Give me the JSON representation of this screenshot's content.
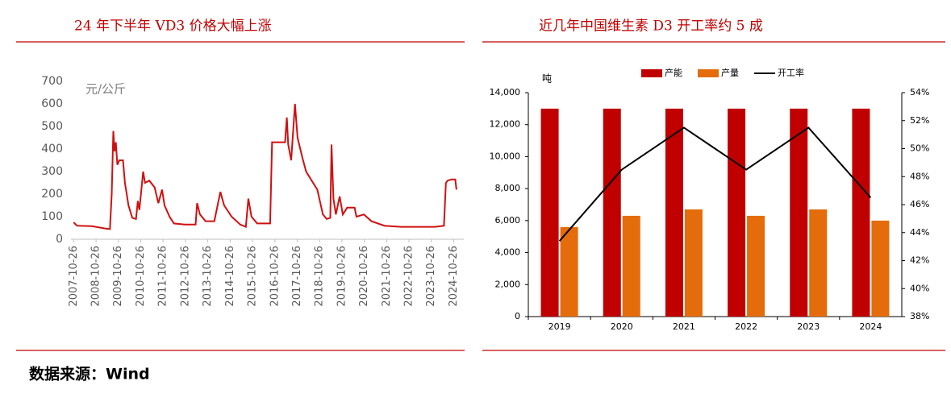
{
  "chart_data": [
    {
      "type": "line",
      "title": "24 年下半年 VD3 价格大幅上涨",
      "unit": "元/公斤",
      "color": "#d01010",
      "x": [
        "2007-10-26",
        "2007-12-20",
        "2008-08-20",
        "2009-03-20",
        "2009-06-10",
        "2009-07-10",
        "2009-08-05",
        "2009-08-25",
        "2009-09-15",
        "2009-10-10",
        "2009-11-10",
        "2010-01-10",
        "2010-02-10",
        "2010-04-10",
        "2010-06-10",
        "2010-08-10",
        "2010-09-10",
        "2010-10-05",
        "2010-12-05",
        "2011-01-05",
        "2011-03-15",
        "2011-06-10",
        "2011-08-10",
        "2011-10-10",
        "2011-11-20",
        "2012-02-10",
        "2012-04-20",
        "2012-10-20",
        "2013-04-10",
        "2013-05-05",
        "2013-06-20",
        "2013-09-20",
        "2014-02-10",
        "2014-04-20",
        "2014-05-20",
        "2014-07-20",
        "2014-11-20",
        "2015-04-10",
        "2015-07-10",
        "2015-08-20",
        "2015-10-10",
        "2016-01-10",
        "2016-08-10",
        "2016-09-10",
        "2017-04-10",
        "2017-05-10",
        "2017-06-01",
        "2017-07-20",
        "2017-09-20",
        "2017-11-01",
        "2018-01-20",
        "2018-03-20",
        "2018-06-20",
        "2018-09-20",
        "2018-12-20",
        "2019-02-20",
        "2019-04-20",
        "2019-05-10",
        "2019-06-10",
        "2019-07-20",
        "2019-09-20",
        "2019-11-10",
        "2020-01-20",
        "2020-05-20",
        "2020-06-20",
        "2020-10-20",
        "2021-02-20",
        "2021-09-20",
        "2022-06-20",
        "2023-04-20",
        "2023-12-20",
        "2024-05-20",
        "2024-06-20",
        "2024-07-20",
        "2024-09-20",
        "2024-11-20",
        "2024-12-10"
      ],
      "values": [
        75,
        60,
        58,
        48,
        45,
        200,
        480,
        390,
        430,
        330,
        350,
        350,
        250,
        150,
        95,
        90,
        170,
        130,
        300,
        250,
        260,
        230,
        160,
        220,
        150,
        100,
        70,
        65,
        65,
        160,
        110,
        80,
        80,
        170,
        210,
        150,
        100,
        65,
        55,
        180,
        100,
        70,
        70,
        430,
        430,
        540,
        420,
        350,
        600,
        450,
        360,
        300,
        260,
        220,
        110,
        90,
        95,
        420,
        180,
        110,
        190,
        110,
        140,
        140,
        100,
        110,
        80,
        60,
        55,
        55,
        55,
        60,
        250,
        260,
        265,
        265,
        220
      ],
      "xlim": [
        "2007-09-13",
        "2025-04-09"
      ],
      "xticks": [
        "2007-10-26",
        "2008-10-26",
        "2009-10-26",
        "2010-10-26",
        "2011-10-26",
        "2012-10-26",
        "2013-10-26",
        "2014-10-26",
        "2015-10-26",
        "2016-10-26",
        "2017-10-26",
        "2018-10-26",
        "2019-10-26",
        "2020-10-26",
        "2021-10-26",
        "2022-10-26",
        "2023-10-26",
        "2024-10-26"
      ],
      "ylim": [
        0,
        700
      ],
      "yticks": [
        0,
        100,
        200,
        300,
        400,
        500,
        600,
        700
      ]
    },
    {
      "type": "bar",
      "title": "近几年中国维生素 D3 开工率约 5 成",
      "unit": "吨",
      "categories": [
        "2019",
        "2020",
        "2021",
        "2022",
        "2023",
        "2024"
      ],
      "series": [
        {
          "name": "产能",
          "color": "#c00000",
          "values": [
            13000,
            13000,
            13000,
            13000,
            13000,
            13000
          ]
        },
        {
          "name": "产量",
          "color": "#e46c0a",
          "values": [
            5600,
            6300,
            6700,
            6300,
            6700,
            6000
          ]
        },
        {
          "name": "开工率",
          "color": "#000000",
          "type": "line",
          "axis": "y2",
          "values": [
            43.4,
            48.5,
            51.5,
            48.5,
            51.5,
            46.5
          ]
        }
      ],
      "ylim": [
        0,
        14000
      ],
      "yticks": [
        0,
        {
          "value": 2000,
          "label": "2,000"
        },
        {
          "value": 4000,
          "label": "4,000"
        },
        {
          "value": 6000,
          "label": "6,000"
        },
        {
          "value": 8000,
          "label": "8,000"
        },
        {
          "value": 10000,
          "label": "10,000"
        },
        {
          "value": 12000,
          "label": "12,000"
        },
        {
          "value": 14000,
          "label": "14,000"
        }
      ],
      "y2lim": [
        38,
        54
      ],
      "y2ticks": [
        {
          "value": 38,
          "label": "38%"
        },
        {
          "value": 40,
          "label": "40%"
        },
        {
          "value": 42,
          "label": "42%"
        },
        {
          "value": 44,
          "label": "44%"
        },
        {
          "value": 46,
          "label": "46%"
        },
        {
          "value": 48,
          "label": "48%"
        },
        {
          "value": 50,
          "label": "50%"
        },
        {
          "value": 52,
          "label": "52%"
        },
        {
          "value": 54,
          "label": "54%"
        }
      ],
      "legend": "top"
    }
  ],
  "source": "数据来源：Wind"
}
